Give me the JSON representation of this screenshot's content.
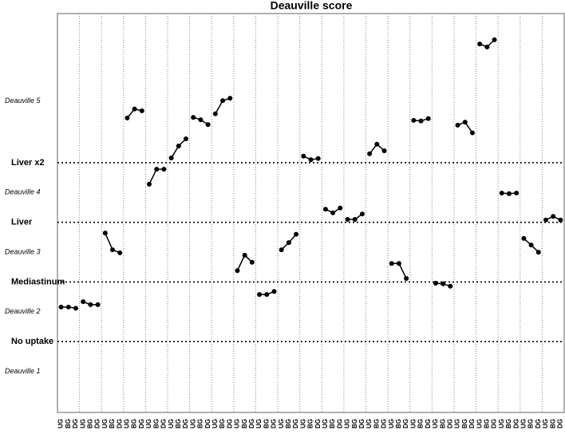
{
  "chart_data": {
    "type": "line",
    "title": "Deauville score",
    "categories": [
      "UG",
      "BG",
      "DG"
    ],
    "color": "#000000",
    "ylim": [
      0,
      6.5
    ],
    "yticks": [
      {
        "value": 1,
        "label": "No uptake"
      },
      {
        "value": 2,
        "label": "Mediastinum"
      },
      {
        "value": 3,
        "label": "Liver"
      },
      {
        "value": 4,
        "label": "Liver x2"
      }
    ],
    "grid": true,
    "bands": [
      "Deauville 1",
      "Deauville 2",
      "Deauville 3",
      "Deauville 4",
      "Deauville 5"
    ],
    "series": [
      {
        "values": [
          1.58,
          1.58,
          1.56
        ]
      },
      {
        "values": [
          1.67,
          1.62,
          1.62
        ]
      },
      {
        "values": [
          2.82,
          2.54,
          2.49
        ]
      },
      {
        "values": [
          4.75,
          4.9,
          4.87
        ]
      },
      {
        "values": [
          3.64,
          3.89,
          3.89
        ]
      },
      {
        "values": [
          4.08,
          4.28,
          4.4
        ]
      },
      {
        "values": [
          4.76,
          4.72,
          4.64
        ]
      },
      {
        "values": [
          4.82,
          5.04,
          5.08
        ]
      },
      {
        "values": [
          2.19,
          2.45,
          2.33
        ]
      },
      {
        "values": [
          1.79,
          1.79,
          1.84
        ]
      },
      {
        "values": [
          2.54,
          2.66,
          2.8
        ]
      },
      {
        "values": [
          4.11,
          4.05,
          4.07
        ]
      },
      {
        "values": [
          3.22,
          3.16,
          3.24
        ]
      },
      {
        "values": [
          3.05,
          3.05,
          3.14
        ]
      },
      {
        "values": [
          4.15,
          4.31,
          4.2
        ]
      },
      {
        "values": [
          2.31,
          2.31,
          2.06
        ]
      },
      {
        "values": [
          4.71,
          4.7,
          4.74
        ]
      },
      {
        "values": [
          1.98,
          1.97,
          1.93
        ]
      },
      {
        "values": [
          4.63,
          4.68,
          4.5
        ]
      },
      {
        "values": [
          5.99,
          5.94,
          6.06
        ]
      },
      {
        "values": [
          3.49,
          3.48,
          3.49
        ]
      },
      {
        "values": [
          2.73,
          2.62,
          2.5
        ]
      },
      {
        "values": [
          3.04,
          3.1,
          3.04
        ]
      }
    ]
  }
}
